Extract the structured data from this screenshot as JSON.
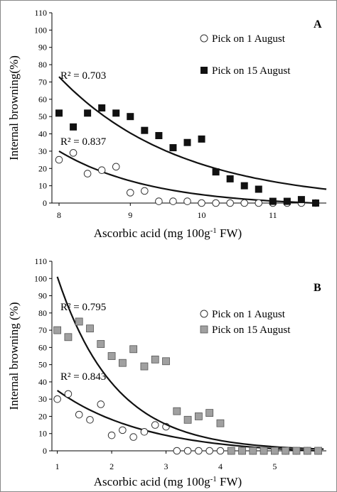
{
  "chart_data": [
    {
      "type": "scatter",
      "panel_label": "A",
      "xlabel_pre": "Ascorbic acid (mg 100g",
      "xlabel_sup": "-1",
      "xlabel_post": " FW)",
      "ylabel": "Internal browning(%)",
      "xlim": [
        7.9,
        11.75
      ],
      "ylim": [
        0,
        110
      ],
      "xticks": [
        8,
        9,
        10,
        11
      ],
      "yticks": [
        0,
        10,
        20,
        30,
        40,
        50,
        60,
        70,
        80,
        90,
        100,
        110
      ],
      "legend_position": "top-right",
      "series": [
        {
          "name": "Pick on 1 August",
          "marker": "open-circle",
          "color": "#000000",
          "r2": "R² = 0.837",
          "x": [
            8.0,
            8.2,
            8.4,
            8.6,
            8.8,
            9.0,
            9.2,
            9.4,
            9.6,
            9.8,
            10.0,
            10.2,
            10.4,
            10.6,
            10.8,
            11.0,
            11.2,
            11.4,
            11.6
          ],
          "y": [
            25,
            29,
            17,
            19,
            21,
            6,
            7,
            1,
            1,
            1,
            0,
            0,
            0,
            0,
            0,
            0,
            0,
            0,
            0
          ],
          "fit_x": [
            8.0,
            11.6
          ],
          "fit_y": [
            30,
            0
          ]
        },
        {
          "name": "Pick on 15 August",
          "marker": "filled-square",
          "color": "#1a1a1a",
          "r2": "R² = 0.703",
          "x": [
            8.0,
            8.2,
            8.4,
            8.6,
            8.8,
            9.0,
            9.2,
            9.4,
            9.6,
            9.8,
            10.0,
            10.2,
            10.4,
            10.6,
            10.8,
            11.0,
            11.2,
            11.4,
            11.6
          ],
          "y": [
            52,
            44,
            52,
            55,
            52,
            50,
            42,
            39,
            32,
            35,
            37,
            18,
            14,
            10,
            8,
            1,
            1,
            2,
            0
          ],
          "fit_x": [
            8.0,
            11.75
          ],
          "fit_y": [
            73,
            8
          ]
        }
      ]
    },
    {
      "type": "scatter",
      "panel_label": "B",
      "xlabel_pre": "Ascorbic acid (mg 100g",
      "xlabel_sup": "-1",
      "xlabel_post": " FW)",
      "ylabel": "Internal browning (%)",
      "xlim": [
        0.9,
        5.95
      ],
      "ylim": [
        0,
        110
      ],
      "xticks": [
        1,
        2,
        3,
        4,
        5
      ],
      "yticks": [
        0,
        10,
        20,
        30,
        40,
        50,
        60,
        70,
        80,
        90,
        100,
        110
      ],
      "legend_position": "top-right",
      "series": [
        {
          "name": "Pick on 1 August",
          "marker": "open-circle",
          "color": "#000000",
          "r2": "R² = 0.843",
          "x": [
            1.0,
            1.2,
            1.4,
            1.6,
            1.8,
            2.0,
            2.2,
            2.4,
            2.6,
            2.8,
            3.0,
            3.2,
            3.4,
            3.6,
            3.8,
            4.0,
            4.2,
            4.4,
            4.6,
            4.8,
            5.0,
            5.2,
            5.4,
            5.6,
            5.8
          ],
          "y": [
            30,
            33,
            21,
            18,
            27,
            9,
            12,
            8,
            11,
            15,
            14,
            0,
            0,
            0,
            0,
            0,
            0,
            0,
            0,
            0,
            0,
            0,
            0,
            0,
            0
          ],
          "fit_x": [
            1.0,
            5.8
          ],
          "fit_y": [
            35,
            0
          ]
        },
        {
          "name": "Pick on 15 August",
          "marker": "gray-square",
          "color": "#a0a0a0",
          "r2": "R² = 0.795",
          "x": [
            1.0,
            1.2,
            1.4,
            1.6,
            1.8,
            2.0,
            2.2,
            2.4,
            2.6,
            2.8,
            3.0,
            3.2,
            3.4,
            3.6,
            3.8,
            4.0,
            4.2,
            4.4,
            4.6,
            4.8,
            5.0,
            5.2,
            5.4,
            5.6,
            5.8
          ],
          "y": [
            70,
            66,
            75,
            71,
            62,
            55,
            51,
            59,
            49,
            53,
            52,
            23,
            18,
            20,
            22,
            16,
            0,
            0,
            0,
            0,
            0,
            0,
            0,
            0,
            0
          ],
          "fit_x": [
            1.0,
            5.9
          ],
          "fit_y": [
            101,
            1
          ]
        }
      ]
    }
  ]
}
